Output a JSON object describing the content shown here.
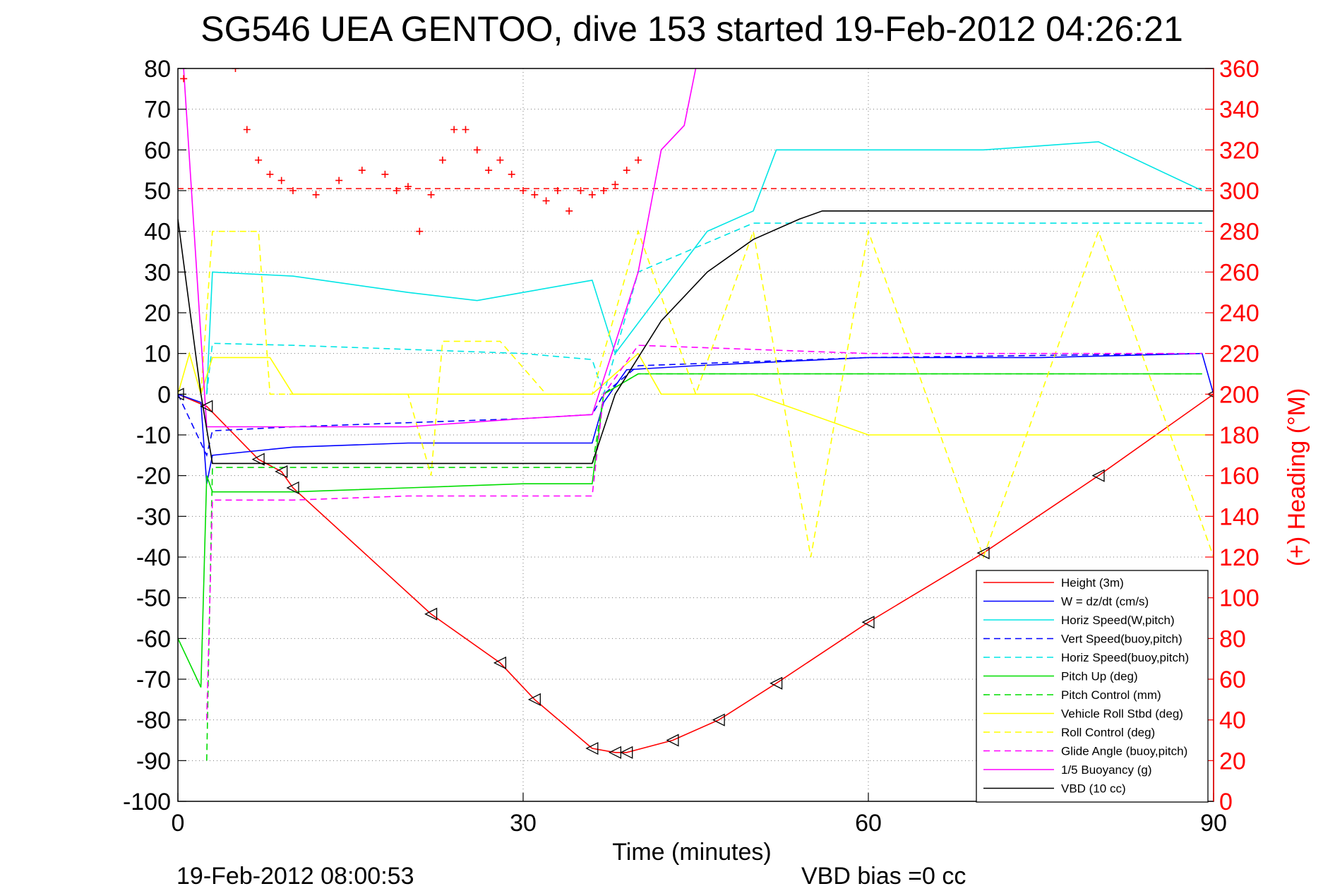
{
  "chart_data": {
    "type": "line",
    "title": "SG546 UEA GENTOO, dive 153 started 19-Feb-2012 04:26:21",
    "xlabel": "Time (minutes)",
    "ylabel": "",
    "ylabel_right": "(+) Heading (°M)",
    "xlim": [
      0,
      90
    ],
    "ylim": [
      -100,
      80
    ],
    "ylim_right": [
      0,
      360
    ],
    "grid": true,
    "legend_position": "lower-right",
    "x_ticks": [
      "0",
      "30",
      "60",
      "90"
    ],
    "y_ticks": [
      "80",
      "70",
      "60",
      "50",
      "40",
      "30",
      "20",
      "10",
      "0",
      "-10",
      "-20",
      "-30",
      "-40",
      "-50",
      "-60",
      "-70",
      "-80",
      "-90",
      "-100"
    ],
    "y_ticks_right": [
      "360",
      "340",
      "320",
      "300",
      "280",
      "260",
      "240",
      "220",
      "200",
      "180",
      "160",
      "140",
      "120",
      "100",
      "80",
      "60",
      "40",
      "20",
      "0"
    ],
    "footer_left": "19-Feb-2012 08:00:53",
    "footer_right": "VBD bias =0 cc",
    "colors": {
      "axis_left": "#000000",
      "axis_right": "#ff0000"
    },
    "heading_reference": {
      "value": 301,
      "axis": "right",
      "style": "dashed",
      "color": "#ff0000"
    },
    "series": [
      {
        "name": "Height (3m)",
        "color": "#ff0000",
        "style": "solid",
        "axis": "left",
        "x": [
          0,
          2.5,
          7,
          9,
          10,
          22,
          28,
          31,
          36,
          38,
          39,
          43,
          47,
          52,
          60,
          70,
          80,
          90
        ],
        "y": [
          0,
          -3,
          -16,
          -19,
          -23,
          -54,
          -66,
          -75,
          -87,
          -88,
          -88,
          -85,
          -80,
          -71,
          -56,
          -39,
          -20,
          0
        ]
      },
      {
        "name": "W = dz/dt (cm/s)",
        "color": "#0000ff",
        "style": "solid",
        "axis": "left",
        "x": [
          0,
          2,
          2.5,
          3,
          10,
          20,
          30,
          36,
          37,
          39,
          45,
          60,
          75,
          89,
          90
        ],
        "y": [
          0,
          -2,
          -22,
          -15,
          -13,
          -12,
          -12,
          -12,
          -2,
          6,
          7,
          9,
          9,
          10,
          0
        ]
      },
      {
        "name": "Horiz Speed(W,pitch)",
        "color": "#00e5e5",
        "style": "solid",
        "axis": "left",
        "x": [
          2.5,
          3,
          10,
          20,
          26,
          30,
          36,
          38,
          42,
          46,
          50,
          52,
          60,
          70,
          80,
          89
        ],
        "y": [
          0,
          30,
          29,
          25,
          23,
          25,
          28,
          10,
          25,
          40,
          45,
          60,
          60,
          60,
          62,
          50
        ]
      },
      {
        "name": "Vert Speed(buoy,pitch)",
        "color": "#0000ff",
        "style": "dashed",
        "axis": "left",
        "x": [
          0,
          2.5,
          3,
          10,
          20,
          30,
          36,
          37,
          40,
          60,
          89
        ],
        "y": [
          0,
          -15,
          -9,
          -8,
          -7,
          -6,
          -5,
          0,
          7,
          9,
          10
        ]
      },
      {
        "name": "Horiz Speed(buoy,pitch)",
        "color": "#00e5e5",
        "style": "dashed",
        "axis": "left",
        "x": [
          2.5,
          3,
          10,
          20,
          30,
          36,
          37,
          40,
          50,
          60,
          89
        ],
        "y": [
          0,
          12.5,
          12,
          11,
          10,
          8.5,
          0,
          30,
          42,
          42,
          42
        ]
      },
      {
        "name": "Pitch Up (deg)",
        "color": "#00dd00",
        "style": "solid",
        "axis": "left",
        "x": [
          0,
          2,
          2.5,
          3,
          10,
          20,
          30,
          36,
          37,
          40,
          60,
          89
        ],
        "y": [
          -60,
          -72,
          -20,
          -24,
          -24,
          -23,
          -22,
          -22,
          0,
          5,
          5,
          5
        ]
      },
      {
        "name": "Pitch Control (mm)",
        "color": "#00dd00",
        "style": "dashed",
        "axis": "left",
        "x": [
          2.5,
          3,
          36,
          37,
          40,
          60,
          89
        ],
        "y": [
          -90,
          -18,
          -18,
          0,
          5,
          5,
          5
        ]
      },
      {
        "name": "Vehicle Roll Stbd (deg)",
        "color": "#ffff00",
        "style": "solid",
        "axis": "left",
        "x": [
          0,
          1,
          2,
          3,
          8,
          10,
          20,
          36,
          38,
          40,
          42,
          50,
          60,
          70,
          80,
          90
        ],
        "y": [
          0,
          10,
          0,
          9,
          9,
          0,
          0,
          0,
          5,
          10,
          0,
          0,
          -10,
          -10,
          -10,
          -10
        ]
      },
      {
        "name": "Roll Control (deg)",
        "color": "#ffff00",
        "style": "dashed",
        "axis": "left",
        "x": [
          2,
          3,
          7,
          8,
          20,
          22,
          23,
          28,
          32,
          36,
          40,
          45,
          50,
          55,
          60,
          70,
          80,
          90
        ],
        "y": [
          0,
          40,
          40,
          0,
          0,
          -20,
          13,
          13,
          0,
          0,
          40,
          0,
          40,
          -40,
          40,
          -40,
          40,
          -40
        ]
      },
      {
        "name": "Glide Angle (buoy,pitch)",
        "color": "#ff00ff",
        "style": "dashed",
        "axis": "left",
        "x": [
          2.5,
          3,
          10,
          20,
          30,
          36,
          37,
          40,
          60,
          89
        ],
        "y": [
          -80,
          -26,
          -26,
          -25,
          -25,
          -25,
          0,
          12,
          10,
          10
        ]
      },
      {
        "name": "1/5 Buoyancy (g)",
        "color": "#ff00ff",
        "style": "solid",
        "axis": "left",
        "x": [
          0.5,
          2.5,
          10,
          20,
          30,
          36,
          40,
          42,
          44,
          45
        ],
        "y": [
          80,
          -8,
          -8,
          -8,
          -6,
          -5,
          30,
          60,
          66,
          80
        ]
      },
      {
        "name": "VBD (10 cc)",
        "color": "#000000",
        "style": "solid",
        "axis": "left",
        "x": [
          0,
          2,
          3,
          10,
          20,
          30,
          36,
          38,
          42,
          46,
          50,
          54,
          56,
          60,
          70,
          80,
          90
        ],
        "y": [
          43,
          0,
          -17,
          -17,
          -17,
          -17,
          -17,
          0,
          18,
          30,
          38,
          43,
          45,
          45,
          45,
          45,
          45
        ]
      },
      {
        "name": "Heading",
        "color": "#ff0000",
        "marker": "+",
        "style": "none",
        "axis": "right",
        "x": [
          0.5,
          5,
          6,
          7,
          8,
          9,
          10,
          12,
          14,
          16,
          18,
          19,
          20,
          21,
          22,
          23,
          24,
          25,
          26,
          27,
          28,
          29,
          30,
          31,
          32,
          33,
          34,
          35,
          36,
          37,
          38,
          39,
          40
        ],
        "y": [
          355,
          360,
          330,
          315,
          308,
          305,
          300,
          298,
          305,
          310,
          308,
          300,
          302,
          280,
          298,
          315,
          330,
          330,
          320,
          310,
          315,
          308,
          300,
          298,
          295,
          300,
          290,
          300,
          298,
          300,
          303,
          310,
          315
        ]
      }
    ]
  }
}
